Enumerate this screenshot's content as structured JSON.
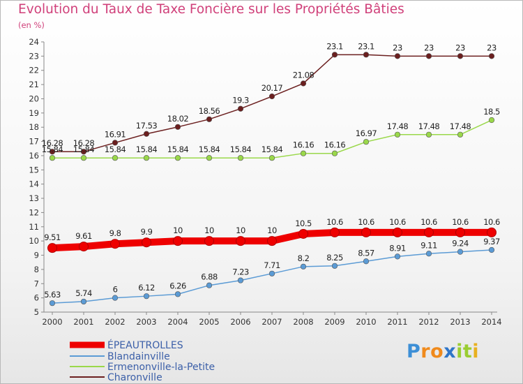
{
  "chart_data": {
    "type": "line",
    "title": "Evolution du Taux de Taxe Foncière sur les Propriétés Bâties",
    "unit_label": "(en %)",
    "x": [
      "2000",
      "2001",
      "2002",
      "2003",
      "2004",
      "2005",
      "2006",
      "2007",
      "2008",
      "2009",
      "2010",
      "2011",
      "2012",
      "2013",
      "2014"
    ],
    "ylim": [
      5,
      24
    ],
    "yticks": [
      5,
      6,
      7,
      8,
      9,
      10,
      11,
      12,
      13,
      14,
      15,
      16,
      17,
      18,
      19,
      20,
      21,
      22,
      23,
      24
    ],
    "grid": false,
    "legend_placement": "bottom-left",
    "series": [
      {
        "name": "ÉPEAUTROLLES",
        "color": "#ee0000",
        "emphasis": true,
        "values": [
          9.51,
          9.61,
          9.8,
          9.9,
          10,
          10,
          10,
          10,
          10.5,
          10.6,
          10.6,
          10.6,
          10.6,
          10.6,
          10.6
        ],
        "labels": [
          "9.51",
          "9.61",
          "9.8",
          "9.9",
          "10",
          "10",
          "10",
          "10",
          "10.5",
          "10.6",
          "10.6",
          "10.6",
          "10.6",
          "10.6",
          "10.6"
        ]
      },
      {
        "name": "Blandainville",
        "color": "#5b9bd5",
        "values": [
          5.63,
          5.74,
          6,
          6.12,
          6.26,
          6.88,
          7.23,
          7.71,
          8.2,
          8.25,
          8.57,
          8.91,
          9.11,
          9.24,
          9.37
        ],
        "labels": [
          "5.63",
          "5.74",
          "6",
          "6.12",
          "6.26",
          "6.88",
          "7.23",
          "7.71",
          "8.2",
          "8.25",
          "8.57",
          "8.91",
          "9.11",
          "9.24",
          "9.37"
        ]
      },
      {
        "name": "Ermenonville-la-Petite",
        "color": "#9ad84a",
        "values": [
          15.84,
          15.84,
          15.84,
          15.84,
          15.84,
          15.84,
          15.84,
          15.84,
          16.16,
          16.16,
          16.97,
          17.48,
          17.48,
          17.48,
          18.5
        ],
        "labels": [
          "15.84",
          "15.84",
          "15.84",
          "15.84",
          "15.84",
          "15.84",
          "15.84",
          "15.84",
          "16.16",
          "16.16",
          "16.97",
          "17.48",
          "17.48",
          "17.48",
          "18.5"
        ]
      },
      {
        "name": "Charonville",
        "color": "#6b1f1f",
        "values": [
          16.28,
          16.28,
          16.91,
          17.53,
          18.02,
          18.56,
          19.3,
          20.17,
          21.08,
          23.1,
          23.1,
          23,
          23,
          23,
          23
        ],
        "labels": [
          "16.28",
          "16.28",
          "16.91",
          "17.53",
          "18.02",
          "18.56",
          "19.3",
          "20.17",
          "21.08",
          "23.1",
          "23.1",
          "23",
          "23",
          "23",
          "23"
        ]
      }
    ]
  },
  "logo": {
    "letters": [
      "P",
      "r",
      "o",
      "x",
      "i",
      "t",
      "i"
    ],
    "colors": [
      "#3d8fd6",
      "#f08a1c",
      "#f08a1c",
      "#2f75c8",
      "#9acd32",
      "#9acd32",
      "#e8b020"
    ]
  }
}
